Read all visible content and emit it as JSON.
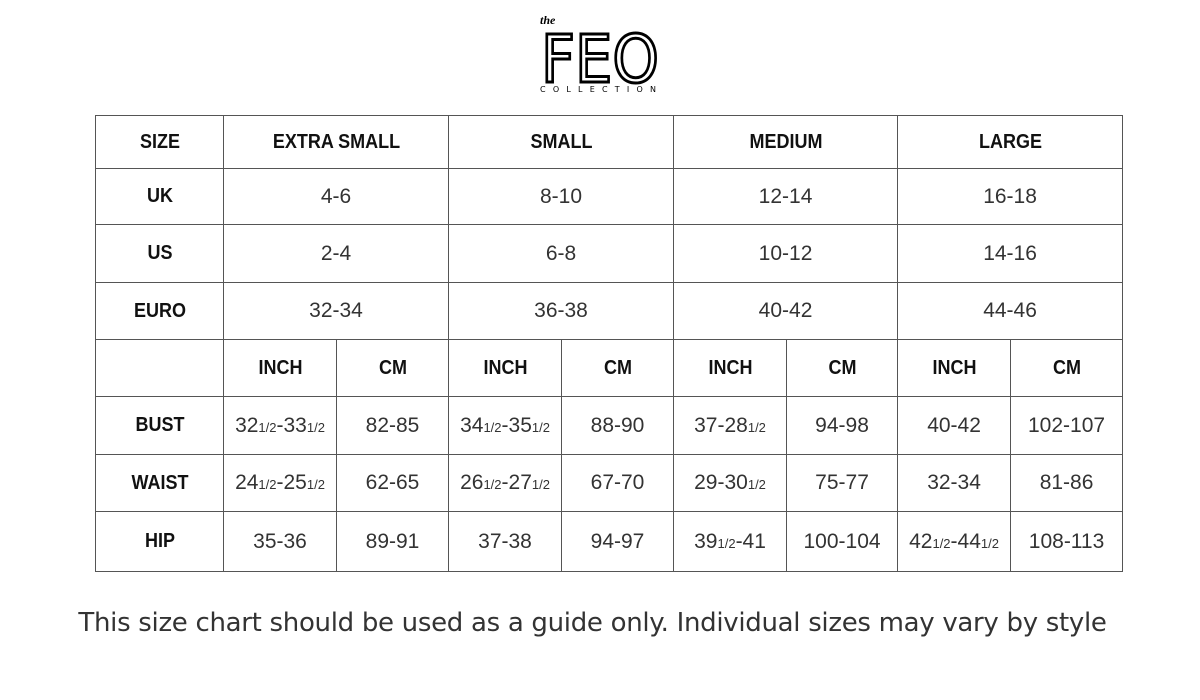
{
  "logo": {
    "small": "the",
    "main": "FEO",
    "sub": "COLLECTION"
  },
  "table": {
    "header": [
      "SIZE",
      "EXTRA SMALL",
      "SMALL",
      "MEDIUM",
      "LARGE"
    ],
    "size_rows": [
      [
        "UK",
        "4-6",
        "8-10",
        "12-14",
        "16-18"
      ],
      [
        "US",
        "2-4",
        "6-8",
        "10-12",
        "14-16"
      ],
      [
        "EURO",
        "32-34",
        "36-38",
        "40-42",
        "44-46"
      ]
    ],
    "units": [
      "INCH",
      "CM",
      "INCH",
      "CM",
      "INCH",
      "CM",
      "INCH",
      "CM"
    ],
    "measure_rows": [
      [
        "BUST",
        "321/2-331/2",
        "82-85",
        "341/2-351/2",
        "88-90",
        "37-281/2",
        "94-98",
        "40-42",
        "102-107"
      ],
      [
        "WAIST",
        "241/2-251/2",
        "62-65",
        "261/2-271/2",
        "67-70",
        "29-301/2",
        "75-77",
        "32-34",
        "81-86"
      ],
      [
        "HIP",
        "35-36",
        "89-91",
        "37-38",
        "94-97",
        "391/2-41",
        "100-104",
        "421/2-441/2",
        "108-113"
      ]
    ]
  },
  "footer": "This size chart should be used as a guide only. Individual sizes may vary by style"
}
